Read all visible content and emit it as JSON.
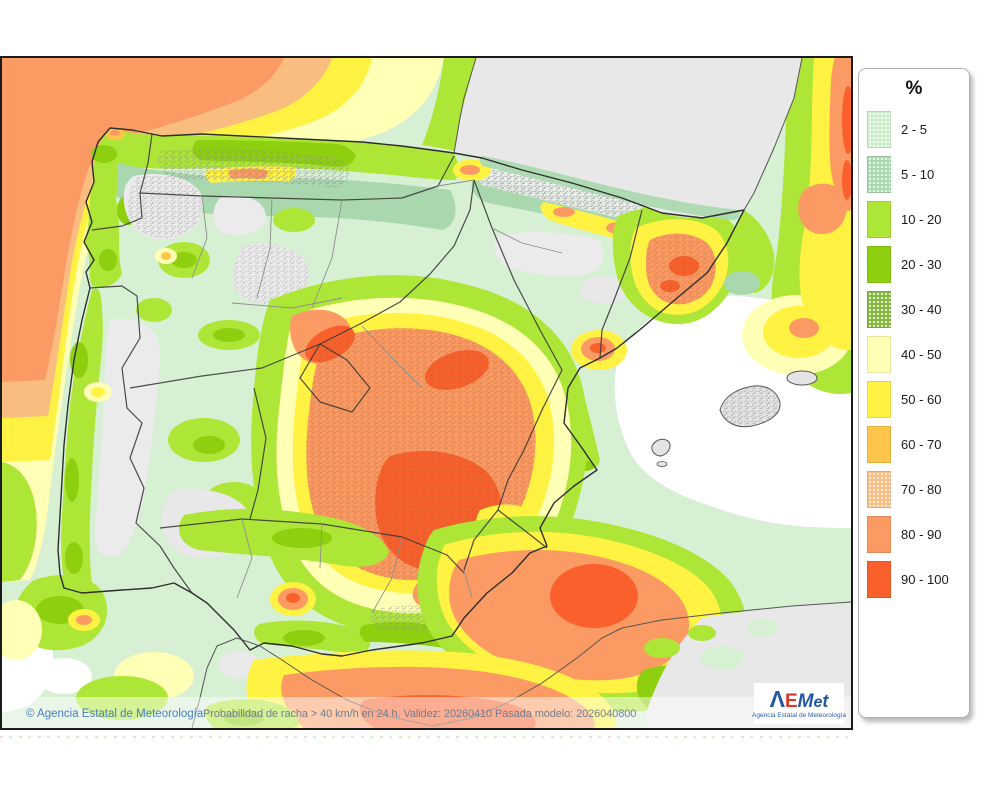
{
  "map": {
    "footer": {
      "copyright": "© Agencia Estatal de Meteorología",
      "caption": "Probabilidad de racha > 40 km/h en 24 h. Validez: 20260410 Pasada modelo: 2026040800"
    },
    "logo": {
      "letters": [
        {
          "ch": "Λ",
          "color": "#2456a4"
        },
        {
          "ch": "E",
          "color": "#d03a2b"
        },
        {
          "ch": "M",
          "color": "#2456a4"
        },
        {
          "ch": "e",
          "color": "#2456a4"
        },
        {
          "ch": "t",
          "color": "#2456a4"
        }
      ],
      "subtitle": "Agencia Estatal de Meteorología"
    }
  },
  "legend": {
    "title": "%",
    "entries": [
      {
        "label": "2 - 5",
        "color": "#cdeecb",
        "dotted": true
      },
      {
        "label": "5 - 10",
        "color": "#a9d8ae",
        "dotted": true
      },
      {
        "label": "10 - 20",
        "color": "#aee637",
        "dotted": false
      },
      {
        "label": "20 - 30",
        "color": "#8ed00f",
        "dotted": false
      },
      {
        "label": "30 - 40",
        "color": "#84b63e",
        "dotted": true
      },
      {
        "label": "40 - 50",
        "color": "#ffffb5",
        "dotted": false
      },
      {
        "label": "50 - 60",
        "color": "#fff242",
        "dotted": false
      },
      {
        "label": "60 - 70",
        "color": "#fdc64a",
        "dotted": false
      },
      {
        "label": "70 - 80",
        "color": "#f9bd80",
        "dotted": true
      },
      {
        "label": "80 - 90",
        "color": "#fb9b63",
        "dotted": false
      },
      {
        "label": "90 - 100",
        "color": "#f9602c",
        "dotted": false
      }
    ]
  }
}
